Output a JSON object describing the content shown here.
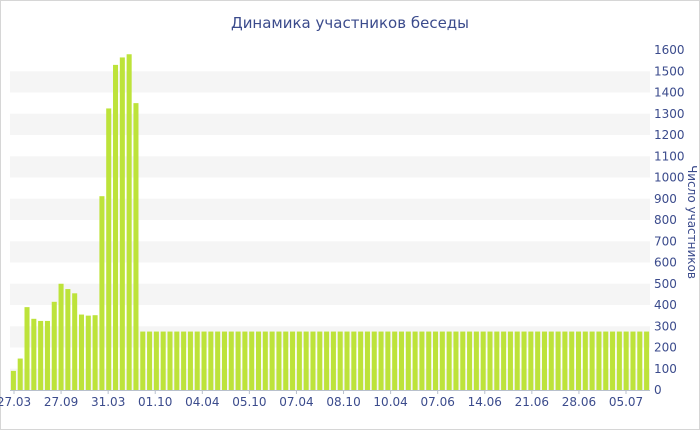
{
  "chart_data": {
    "type": "bar",
    "title": "Динамика участников беседы",
    "ylabel": "Число участников",
    "xlabel": "",
    "ylim": [
      0,
      1600
    ],
    "yticks": [
      0,
      100,
      200,
      300,
      400,
      500,
      600,
      700,
      800,
      900,
      1000,
      1100,
      1200,
      1300,
      1400,
      1500,
      1600
    ],
    "x_tick_labels": [
      "27.03",
      "27.09",
      "31.03",
      "01.10",
      "04.04",
      "05.10",
      "07.04",
      "08.10",
      "10.04",
      "07.06",
      "14.06",
      "21.06",
      "28.06",
      "05.07"
    ],
    "grid": "horizontal bands",
    "color": "#bde33a",
    "values": [
      90,
      148,
      390,
      335,
      325,
      325,
      415,
      500,
      475,
      455,
      355,
      350,
      352,
      912,
      1325,
      1530,
      1565,
      1580,
      1350,
      275,
      275,
      275,
      275,
      275,
      275,
      275,
      275,
      275,
      275,
      275,
      275,
      275,
      275,
      275,
      275,
      275,
      275,
      275,
      275,
      275,
      275,
      275,
      275,
      275,
      275,
      275,
      275,
      275,
      275,
      275,
      275,
      275,
      275,
      275,
      275,
      275,
      275,
      275,
      275,
      275,
      275,
      275,
      275,
      275,
      275,
      275,
      275,
      275,
      275,
      275,
      275,
      275,
      275,
      275,
      275,
      275,
      275,
      275,
      275,
      275,
      275,
      275,
      275,
      275,
      275,
      275,
      275,
      275,
      275,
      275,
      275,
      275,
      275,
      275
    ]
  }
}
